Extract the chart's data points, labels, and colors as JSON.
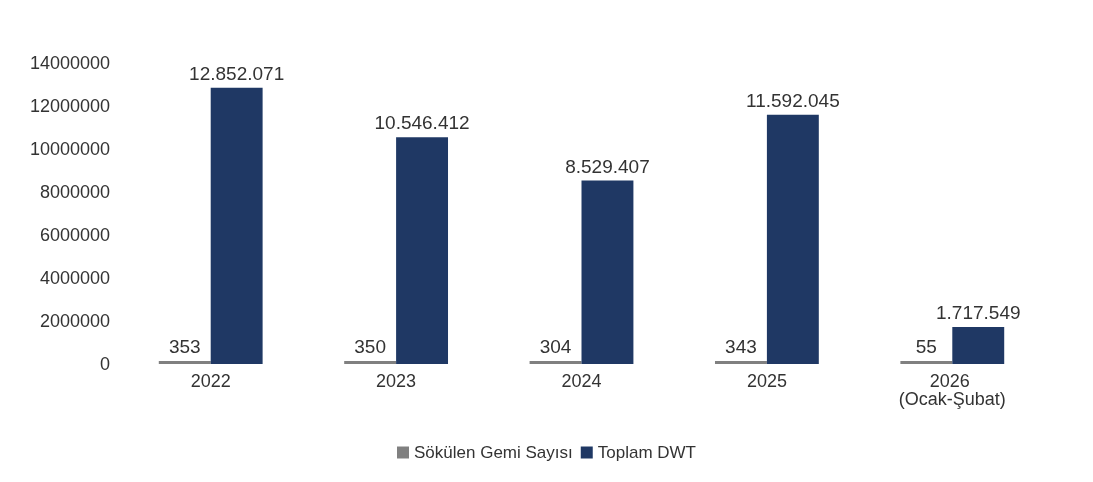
{
  "chart_data": {
    "type": "bar",
    "categories": [
      "2022",
      "2023",
      "2024",
      "2025",
      "2026 (Ocak-Şubat)"
    ],
    "series": [
      {
        "name": "Sökülen Gemi Sayısı",
        "color": "#808080",
        "values": [
          353,
          350,
          304,
          343,
          55
        ],
        "value_labels": [
          "353",
          "350",
          "304",
          "343",
          "55"
        ]
      },
      {
        "name": "Toplam DWT",
        "color": "#1f3864",
        "values": [
          12852071,
          10546412,
          8529407,
          11592045,
          1717549
        ],
        "value_labels": [
          "12.852.071",
          "10.546.412",
          "8.529.407",
          "11.592.045",
          "1.717.549"
        ]
      }
    ],
    "ylim": [
      0,
      14000000
    ],
    "yticks": [
      0,
      2000000,
      4000000,
      6000000,
      8000000,
      10000000,
      12000000,
      14000000
    ],
    "grid": false,
    "legend": "bottom"
  }
}
